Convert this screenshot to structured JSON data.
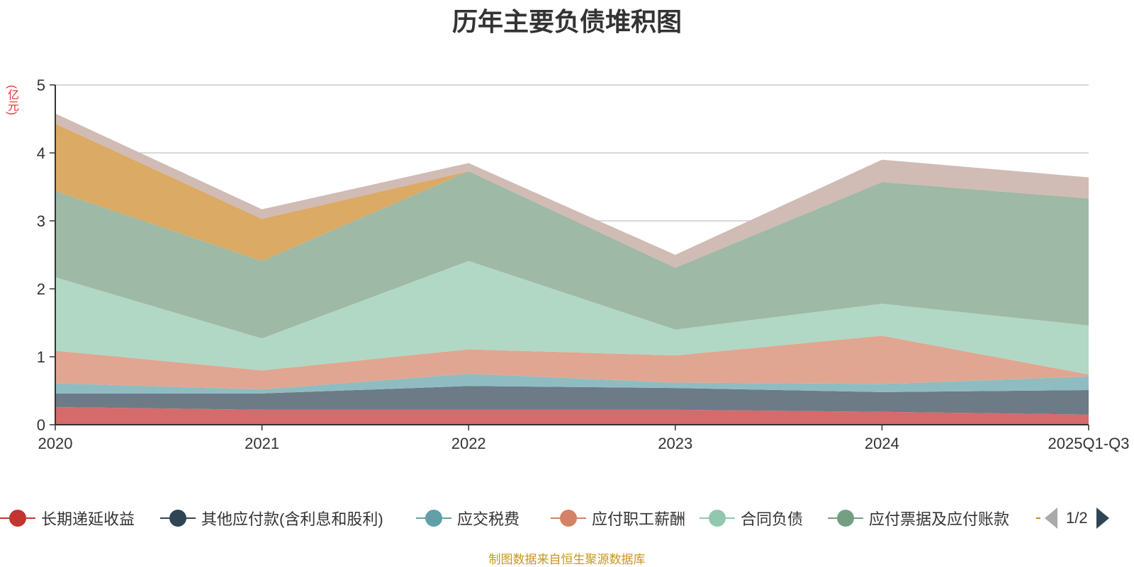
{
  "title": "历年主要负债堆积图",
  "unit_label": "(亿元)",
  "source_note": "制图数据来自恒生聚源数据库",
  "pager": {
    "text": "1/2"
  },
  "chart_data": {
    "type": "area",
    "stacked": true,
    "title": "历年主要负债堆积图",
    "ylabel": "(亿元)",
    "ylim": [
      0,
      5
    ],
    "yticks": [
      0,
      1,
      2,
      3,
      4,
      5
    ],
    "grid": true,
    "legend_position": "bottom",
    "x": [
      "2020",
      "2021",
      "2022",
      "2023",
      "2024",
      "2025Q1-Q3"
    ],
    "series": [
      {
        "name": "长期递延收益",
        "color": "#c23531",
        "fill": "#d56b6b",
        "values": [
          0.26,
          0.22,
          0.22,
          0.22,
          0.19,
          0.15
        ]
      },
      {
        "name": "其他应付款(含利息和股利)",
        "color": "#2f4554",
        "fill": "#6d7b87",
        "values": [
          0.2,
          0.24,
          0.35,
          0.32,
          0.29,
          0.36
        ]
      },
      {
        "name": "应交税费",
        "color": "#61a0a8",
        "fill": "#8fbcc1",
        "values": [
          0.15,
          0.06,
          0.18,
          0.08,
          0.12,
          0.2
        ]
      },
      {
        "name": "应付职工薪酬",
        "color": "#d48265",
        "fill": "#e0a691",
        "values": [
          0.48,
          0.28,
          0.36,
          0.4,
          0.71,
          0.03
        ]
      },
      {
        "name": "合同负债",
        "color": "#91c7ae",
        "fill": "#b1d8c5",
        "values": [
          1.08,
          0.47,
          1.3,
          0.38,
          0.47,
          0.72
        ]
      },
      {
        "name": "应付票据及应付账款",
        "color": "#749f83",
        "fill": "#9eb9a6",
        "values": [
          1.27,
          1.14,
          1.32,
          0.91,
          1.79,
          1.87
        ]
      },
      {
        "name": "",
        "color": "#ca8622",
        "fill": "#dbaa64",
        "values": [
          0.99,
          0.62,
          0.0,
          0.0,
          0.0,
          0.0
        ]
      },
      {
        "name": "",
        "color": "#bda29a",
        "fill": "#d1bbb5",
        "values": [
          0.15,
          0.14,
          0.12,
          0.19,
          0.33,
          0.31
        ]
      }
    ]
  }
}
